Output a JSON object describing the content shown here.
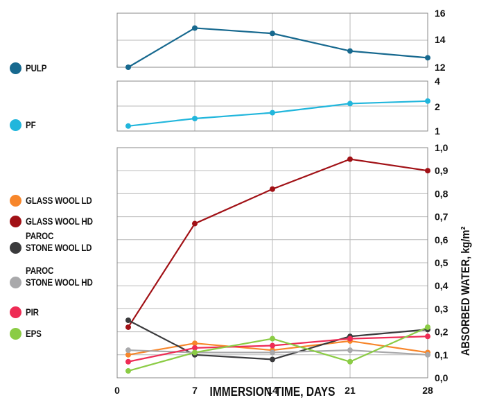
{
  "chart_data": [
    {
      "type": "line",
      "x": [
        1,
        7,
        14,
        21,
        28
      ],
      "ylim": [
        12,
        16
      ],
      "yticks": [
        "12",
        "14",
        "16"
      ],
      "series": [
        {
          "name": "PULP",
          "color": "#17698f",
          "values": [
            12.0,
            14.9,
            14.5,
            13.2,
            12.7
          ]
        }
      ]
    },
    {
      "type": "line",
      "x": [
        1,
        7,
        14,
        21,
        28
      ],
      "ylim": [
        1,
        4
      ],
      "yticks": [
        "1",
        "2",
        "4"
      ],
      "series": [
        {
          "name": "PF",
          "color": "#21b6dc",
          "values": [
            1.3,
            1.75,
            2.1,
            2.65,
            2.8
          ]
        }
      ]
    },
    {
      "type": "line",
      "x": [
        1,
        7,
        14,
        21,
        28
      ],
      "xlim": [
        0,
        28
      ],
      "xticks": [
        "0",
        "7",
        "14",
        "21",
        "28"
      ],
      "xlabel": "IMMERSION TIME, DAYS",
      "ylabel": "ABSORBED WATER, kg/m²",
      "ylim": [
        0,
        1.0
      ],
      "yticks": [
        "0,0",
        "0,1",
        "0,2",
        "0,3",
        "0,4",
        "0,5",
        "0,6",
        "0,7",
        "0,8",
        "0,9",
        "1,0"
      ],
      "grid": true,
      "series": [
        {
          "name": "GLASS WOOL LD",
          "color": "#f7862b",
          "values": [
            0.1,
            0.15,
            0.12,
            0.16,
            0.11
          ]
        },
        {
          "name": "GLASS WOOL HD",
          "color": "#a11116",
          "values": [
            0.22,
            0.67,
            0.82,
            0.95,
            0.9
          ]
        },
        {
          "name": "PAROC STONE WOOL LD",
          "color": "#3a3a3c",
          "values": [
            0.25,
            0.1,
            0.08,
            0.18,
            0.21
          ]
        },
        {
          "name": "PAROC STONE WOOL HD",
          "color": "#a9a9ab",
          "values": [
            0.12,
            0.11,
            0.11,
            0.12,
            0.1
          ]
        },
        {
          "name": "PIR",
          "color": "#ee2c55",
          "values": [
            0.07,
            0.13,
            0.14,
            0.17,
            0.18
          ]
        },
        {
          "name": "EPS",
          "color": "#8bcc45",
          "values": [
            0.03,
            0.11,
            0.17,
            0.07,
            0.22
          ]
        }
      ]
    }
  ],
  "legend": [
    {
      "lines": [
        "PULP"
      ],
      "color": "#17698f"
    },
    {
      "lines": [
        "PF"
      ],
      "color": "#21b6dc"
    },
    {
      "lines": [
        "GLASS WOOL LD"
      ],
      "color": "#f7862b"
    },
    {
      "lines": [
        "GLASS WOOL HD"
      ],
      "color": "#a11116"
    },
    {
      "lines": [
        "PAROC",
        "STONE WOOL LD"
      ],
      "color": "#3a3a3c"
    },
    {
      "lines": [
        "PAROC",
        "STONE WOOL HD"
      ],
      "color": "#a9a9ab"
    },
    {
      "lines": [
        "PIR"
      ],
      "color": "#ee2c55"
    },
    {
      "lines": [
        "EPS"
      ],
      "color": "#8bcc45"
    }
  ]
}
